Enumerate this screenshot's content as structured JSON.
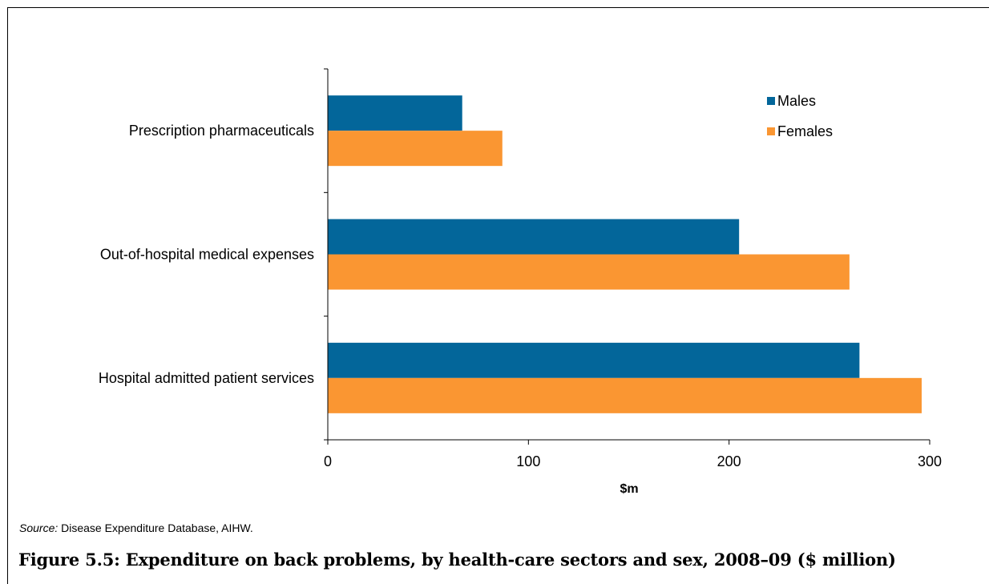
{
  "chart_data": {
    "type": "bar",
    "orientation": "horizontal",
    "categories": [
      "Prescription pharmaceuticals",
      "Out-of-hospital medical expenses",
      "Hospital admitted patient services"
    ],
    "series": [
      {
        "name": "Males",
        "values": [
          67,
          205,
          265
        ]
      },
      {
        "name": "Females",
        "values": [
          87,
          260,
          296
        ]
      }
    ],
    "title": "",
    "xlabel": "$m",
    "ylabel": "",
    "xlim": [
      0,
      300
    ],
    "xticks": [
      "0",
      "100",
      "200",
      "300"
    ],
    "grid": false,
    "legend_position": "top-right"
  },
  "colors": {
    "Males": "#03669a",
    "Females": "#fa9632",
    "axis": "#000000"
  },
  "source": {
    "label": "Source:",
    "text": "Disease Expenditure Database, AIHW."
  },
  "caption": "Figure 5.5: Expenditure on back problems, by health-care sectors and sex, 2008–09 ($ million)"
}
